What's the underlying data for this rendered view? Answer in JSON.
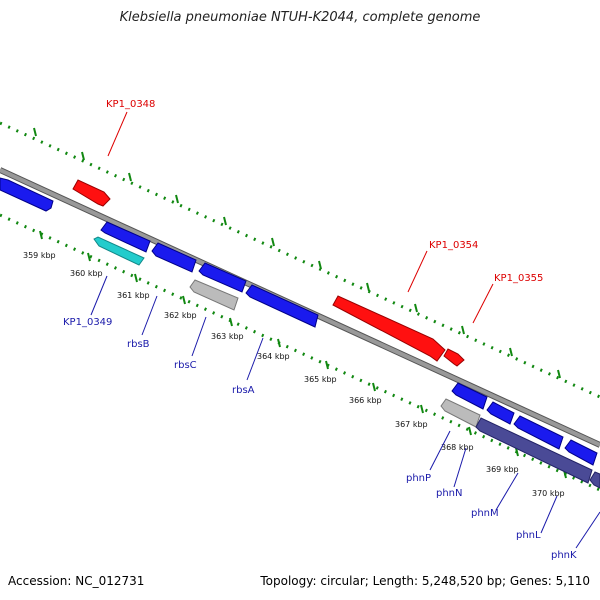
{
  "title": "Klebsiella pneumoniae NTUH-K2044, complete genome",
  "accession": "Accession: NC_012731",
  "topology": "Topology: circular; Length: 5,248,520 bp; Genes: 5,110",
  "colors": {
    "backbone": "#888888",
    "ticks": "#118811",
    "red": "#ff1010",
    "blue": "#1a1aee",
    "cyan": "#22cccc",
    "gray": "#bbbbbb",
    "navy": "#4a4a96",
    "label_red": "#dd0000",
    "label_blue": "#1a1aaa"
  },
  "ruler": [
    {
      "label": "359 kbp"
    },
    {
      "label": "360 kbp"
    },
    {
      "label": "361 kbp"
    },
    {
      "label": "362 kbp"
    },
    {
      "label": "363 kbp"
    },
    {
      "label": "364 kbp"
    },
    {
      "label": "365 kbp"
    },
    {
      "label": "366 kbp"
    },
    {
      "label": "367 kbp"
    },
    {
      "label": "368 kbp"
    },
    {
      "label": "369 kbp"
    },
    {
      "label": "370 kbp"
    }
  ],
  "genes_upper": [
    {
      "label": "KP1_0348",
      "color": "red"
    },
    {
      "label": "KP1_0354",
      "color": "red"
    },
    {
      "label": "KP1_0355",
      "color": "red"
    }
  ],
  "genes_lower": [
    {
      "label": "KP1_0349"
    },
    {
      "label": "rbsB"
    },
    {
      "label": "rbsC"
    },
    {
      "label": "rbsA"
    },
    {
      "label": "phnP"
    },
    {
      "label": "phnN"
    },
    {
      "label": "phnM"
    },
    {
      "label": "phnL"
    },
    {
      "label": "phnK"
    }
  ]
}
